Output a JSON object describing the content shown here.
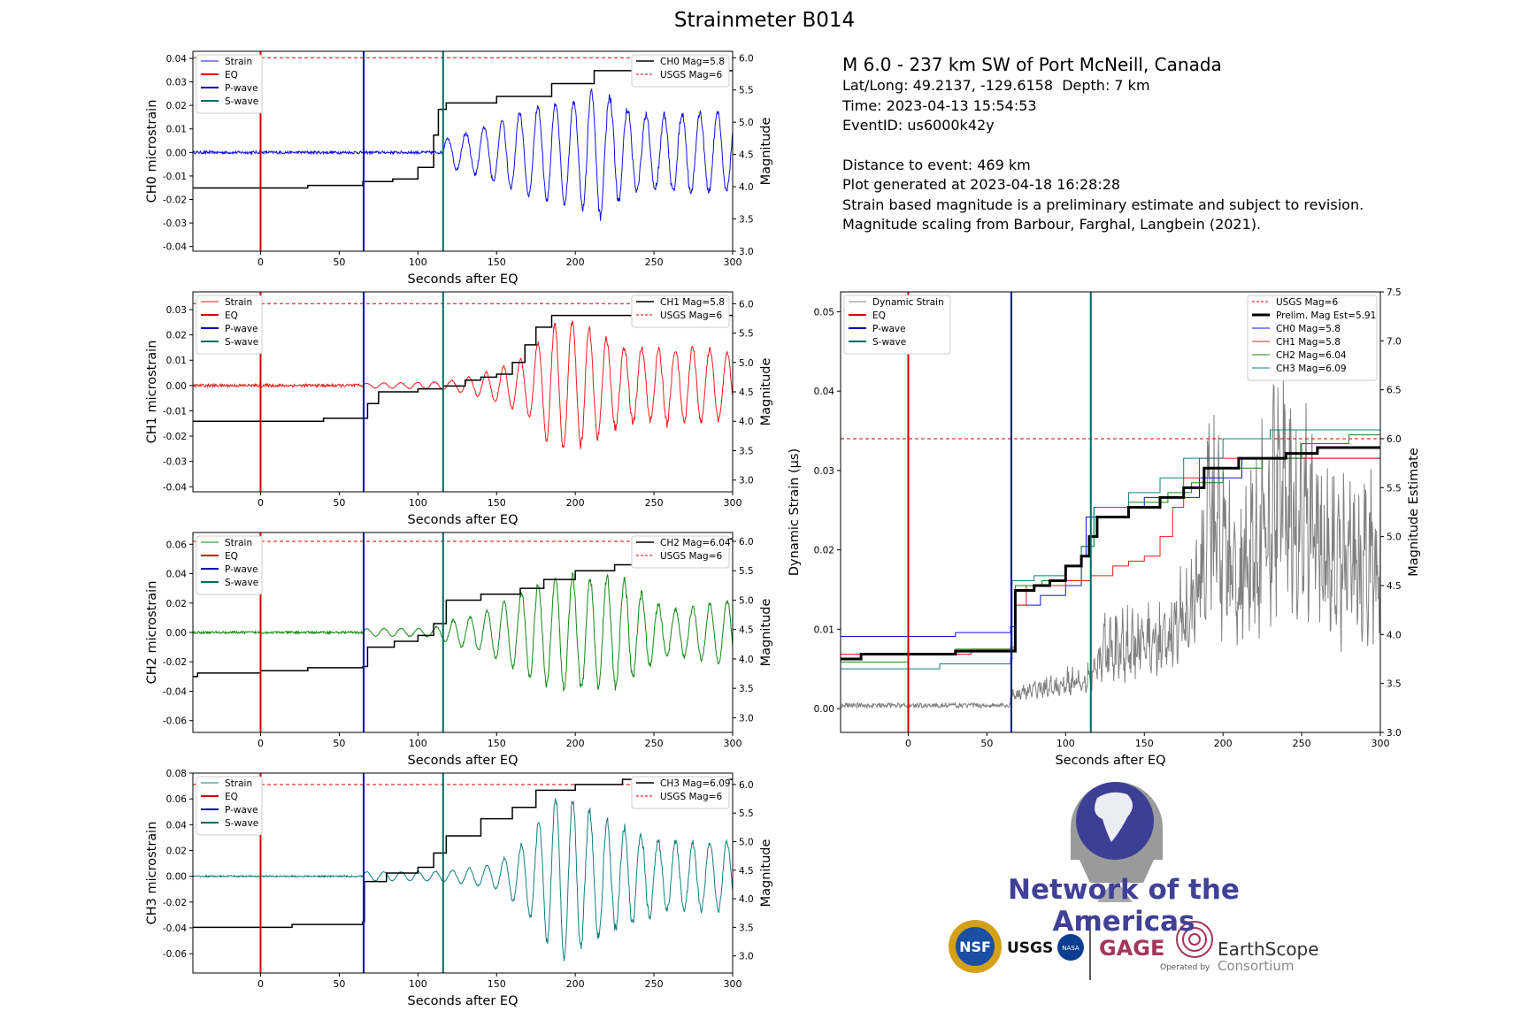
{
  "suptitle": "Strainmeter B014",
  "colors": {
    "ch0": "#1010e0",
    "ch1": "#ee1c1c",
    "ch2": "#118811",
    "ch3": "#117f7f",
    "eq": "#dd0000",
    "pwave": "#0000b0",
    "swave": "#006a60",
    "mag": "#000000",
    "usgs": "#dd0000",
    "dyn": "#808080"
  },
  "info": {
    "headline": "M 6.0 - 237 km SW of Port McNeill, Canada",
    "latlong": "Lat/Long: 49.2137, -129.6158  Depth: 7 km",
    "time": "Time: 2023-04-13 15:54:53",
    "eventid": "EventID: us6000k42y",
    "distance": "Distance to event: 469 km",
    "generated": "Plot generated at 2023-04-18 16:28:28",
    "note1": "Strain based magnitude is a preliminary estimate and subject to revision.",
    "note2": "Magnitude scaling from Barbour, Farghal, Langbein (2021)."
  },
  "logo": {
    "network": "Network of the Americas",
    "nsf": "NSF",
    "usgs": "USGS",
    "nasa": "NASA",
    "gage": "GAGE",
    "earthscope": "EarthScope",
    "consortium": "Consortium",
    "operated_by": "Operated by"
  },
  "chart_data": [
    {
      "type": "line",
      "id": "ch0",
      "ylabel": "CH0 microstrain",
      "xlabel": "Seconds after EQ",
      "y2label": "Magnitude",
      "xlim": [
        -43,
        300
      ],
      "ylim": [
        -0.042,
        0.043
      ],
      "y2lim": [
        3.0,
        6.1
      ],
      "xticks": [
        0,
        50,
        100,
        150,
        200,
        250,
        300
      ],
      "yticks": [
        -0.04,
        -0.03,
        -0.02,
        -0.01,
        0.0,
        0.01,
        0.02,
        0.03,
        0.04
      ],
      "y2ticks": [
        3.0,
        3.5,
        4.0,
        4.5,
        5.0,
        5.5,
        6.0
      ],
      "vlines": {
        "EQ": 0,
        "P-wave": 65.5,
        "S-wave": 116
      },
      "legend_left": [
        "Strain",
        "EQ",
        "P-wave",
        "S-wave"
      ],
      "legend_right": [
        "CH0 Mag=5.8",
        "USGS Mag=6"
      ],
      "usgs_mag": 6.0,
      "signal": {
        "onset": 116,
        "quiet": 0.0006,
        "amps": [
          [
            116,
            0.012
          ],
          [
            135,
            0.014
          ],
          [
            180,
            0.02
          ],
          [
            200,
            0.024
          ],
          [
            215,
            0.036
          ],
          [
            240,
            0.03
          ],
          [
            265,
            0.032
          ],
          [
            300,
            0.018
          ]
        ],
        "period": 11.5
      },
      "mag_steps": [
        [
          -43,
          3.98
        ],
        [
          30,
          4.02
        ],
        [
          65,
          4.08
        ],
        [
          84,
          4.12
        ],
        [
          100,
          4.3
        ],
        [
          110,
          4.8
        ],
        [
          113,
          5.2
        ],
        [
          118,
          5.3
        ],
        [
          150,
          5.4
        ],
        [
          185,
          5.6
        ],
        [
          212,
          5.8
        ],
        [
          300,
          5.8
        ]
      ]
    },
    {
      "type": "line",
      "id": "ch1",
      "ylabel": "CH1 microstrain",
      "xlabel": "Seconds after EQ",
      "y2label": "Magnitude",
      "xlim": [
        -43,
        300
      ],
      "ylim": [
        -0.042,
        0.037
      ],
      "y2lim": [
        2.8,
        6.2
      ],
      "xticks": [
        0,
        50,
        100,
        150,
        200,
        250,
        300
      ],
      "yticks": [
        -0.04,
        -0.03,
        -0.02,
        -0.01,
        0.0,
        0.01,
        0.02,
        0.03
      ],
      "y2ticks": [
        3.0,
        3.5,
        4.0,
        4.5,
        5.0,
        5.5,
        6.0
      ],
      "vlines": {
        "EQ": 0,
        "P-wave": 65.5,
        "S-wave": 116
      },
      "legend_left": [
        "Strain",
        "EQ",
        "P-wave",
        "S-wave"
      ],
      "legend_right": [
        "CH1 Mag=5.8",
        "USGS Mag=6"
      ],
      "usgs_mag": 6.0,
      "signal": {
        "onset": 65,
        "quiet": 0.0006,
        "amps": [
          [
            65,
            0.001
          ],
          [
            116,
            0.003
          ],
          [
            150,
            0.008
          ],
          [
            170,
            0.012
          ],
          [
            185,
            0.024
          ],
          [
            200,
            0.027
          ],
          [
            230,
            0.025
          ],
          [
            260,
            0.03
          ],
          [
            300,
            0.014
          ]
        ],
        "period": 11.0
      },
      "mag_steps": [
        [
          -43,
          4.0
        ],
        [
          40,
          4.05
        ],
        [
          65,
          4.05
        ],
        [
          68,
          4.3
        ],
        [
          75,
          4.5
        ],
        [
          100,
          4.55
        ],
        [
          116,
          4.6
        ],
        [
          130,
          4.7
        ],
        [
          140,
          4.75
        ],
        [
          150,
          4.8
        ],
        [
          160,
          5.0
        ],
        [
          168,
          5.3
        ],
        [
          175,
          5.6
        ],
        [
          185,
          5.8
        ],
        [
          300,
          5.8
        ]
      ]
    },
    {
      "type": "line",
      "id": "ch2",
      "ylabel": "CH2 microstrain",
      "xlabel": "Seconds after EQ",
      "y2label": "Magnitude",
      "xlim": [
        -43,
        300
      ],
      "ylim": [
        -0.068,
        0.068
      ],
      "y2lim": [
        2.75,
        6.15
      ],
      "xticks": [
        0,
        50,
        100,
        150,
        200,
        250,
        300
      ],
      "yticks": [
        -0.06,
        -0.04,
        -0.02,
        0.0,
        0.02,
        0.04,
        0.06
      ],
      "y2ticks": [
        3.0,
        3.5,
        4.0,
        4.5,
        5.0,
        5.5,
        6.0
      ],
      "vlines": {
        "EQ": 0,
        "P-wave": 65.5,
        "S-wave": 116
      },
      "legend_left": [
        "Strain",
        "EQ",
        "P-wave",
        "S-wave"
      ],
      "legend_right": [
        "CH2 Mag=6.04",
        "USGS Mag=6"
      ],
      "usgs_mag": 6.0,
      "signal": {
        "onset": 65,
        "quiet": 0.0008,
        "amps": [
          [
            65,
            0.003
          ],
          [
            110,
            0.006
          ],
          [
            120,
            0.015
          ],
          [
            140,
            0.018
          ],
          [
            180,
            0.035
          ],
          [
            210,
            0.045
          ],
          [
            232,
            0.06
          ],
          [
            260,
            0.03
          ],
          [
            300,
            0.026
          ]
        ],
        "period": 11.0
      },
      "mag_steps": [
        [
          -43,
          3.7
        ],
        [
          -40,
          3.76
        ],
        [
          0,
          3.8
        ],
        [
          30,
          3.85
        ],
        [
          65,
          3.87
        ],
        [
          68,
          4.2
        ],
        [
          85,
          4.3
        ],
        [
          100,
          4.4
        ],
        [
          110,
          4.6
        ],
        [
          118,
          5.0
        ],
        [
          140,
          5.1
        ],
        [
          165,
          5.2
        ],
        [
          180,
          5.35
        ],
        [
          200,
          5.5
        ],
        [
          225,
          5.6
        ],
        [
          250,
          5.8
        ],
        [
          280,
          6.04
        ],
        [
          300,
          6.04
        ]
      ]
    },
    {
      "type": "line",
      "id": "ch3",
      "ylabel": "CH3 microstrain",
      "xlabel": "Seconds after EQ",
      "y2label": "Magnitude",
      "xlim": [
        -43,
        300
      ],
      "ylim": [
        -0.075,
        0.08
      ],
      "y2lim": [
        2.7,
        6.2
      ],
      "xticks": [
        0,
        50,
        100,
        150,
        200,
        250,
        300
      ],
      "yticks": [
        -0.06,
        -0.04,
        -0.02,
        0.0,
        0.02,
        0.04,
        0.06,
        0.08
      ],
      "y2ticks": [
        3.0,
        3.5,
        4.0,
        4.5,
        5.0,
        5.5,
        6.0
      ],
      "vlines": {
        "EQ": 0,
        "P-wave": 65.5,
        "S-wave": 116
      },
      "legend_left": [
        "Strain",
        "EQ",
        "P-wave",
        "S-wave"
      ],
      "legend_right": [
        "CH3 Mag=6.09",
        "USGS Mag=6"
      ],
      "usgs_mag": 6.0,
      "signal": {
        "onset": 65,
        "quiet": 0.0006,
        "amps": [
          [
            65,
            0.004
          ],
          [
            116,
            0.008
          ],
          [
            150,
            0.012
          ],
          [
            170,
            0.03
          ],
          [
            190,
            0.065
          ],
          [
            220,
            0.06
          ],
          [
            240,
            0.065
          ],
          [
            270,
            0.045
          ],
          [
            300,
            0.03
          ]
        ],
        "period": 11.0
      },
      "mag_steps": [
        [
          -43,
          3.5
        ],
        [
          20,
          3.55
        ],
        [
          65,
          3.6
        ],
        [
          66,
          4.3
        ],
        [
          80,
          4.45
        ],
        [
          100,
          4.55
        ],
        [
          110,
          4.8
        ],
        [
          118,
          5.1
        ],
        [
          140,
          5.4
        ],
        [
          160,
          5.6
        ],
        [
          175,
          5.9
        ],
        [
          200,
          6.0
        ],
        [
          230,
          6.09
        ],
        [
          300,
          6.09
        ]
      ]
    },
    {
      "type": "line",
      "id": "combined",
      "ylabel": "Dynamic Strain (µs)",
      "xlabel": "Seconds after EQ",
      "y2label": "Magnitude Estimate",
      "xlim": [
        -43,
        300
      ],
      "ylim": [
        -0.003,
        0.0525
      ],
      "y2lim": [
        3.0,
        7.5
      ],
      "xticks": [
        0,
        50,
        100,
        150,
        200,
        250,
        300
      ],
      "yticks": [
        0.0,
        0.01,
        0.02,
        0.03,
        0.04,
        0.05
      ],
      "y2ticks": [
        3.0,
        3.5,
        4.0,
        4.5,
        5.0,
        5.5,
        6.0,
        6.5,
        7.0,
        7.5
      ],
      "vlines": {
        "EQ": 0,
        "P-wave": 65.5,
        "S-wave": 116
      },
      "legend_left": [
        "Dynamic Strain",
        "EQ",
        "P-wave",
        "S-wave"
      ],
      "legend_right": [
        "USGS Mag=6",
        "Prelim. Mag Est=5.91",
        "CH0 Mag=5.8",
        "CH1 Mag=5.8",
        "CH2 Mag=6.04",
        "CH3 Mag=6.09"
      ],
      "usgs_mag": 6.0,
      "dynamic": {
        "onset": 65,
        "quiet": 0.0003,
        "amps": [
          [
            65,
            0.002
          ],
          [
            116,
            0.006
          ],
          [
            125,
            0.012
          ],
          [
            160,
            0.014
          ],
          [
            180,
            0.02
          ],
          [
            190,
            0.04
          ],
          [
            210,
            0.025
          ],
          [
            235,
            0.045
          ],
          [
            270,
            0.032
          ],
          [
            300,
            0.03
          ]
        ]
      },
      "mag_series": [
        {
          "name": "Prelim. Mag Est=5.91",
          "final": 5.91,
          "steps": [
            [
              -43,
              3.75
            ],
            [
              -30,
              3.8
            ],
            [
              30,
              3.83
            ],
            [
              65,
              3.83
            ],
            [
              68,
              4.45
            ],
            [
              80,
              4.5
            ],
            [
              90,
              4.55
            ],
            [
              100,
              4.7
            ],
            [
              110,
              4.8
            ],
            [
              115,
              5.0
            ],
            [
              120,
              5.2
            ],
            [
              140,
              5.3
            ],
            [
              160,
              5.4
            ],
            [
              175,
              5.5
            ],
            [
              188,
              5.7
            ],
            [
              210,
              5.8
            ],
            [
              240,
              5.85
            ],
            [
              260,
              5.91
            ],
            [
              300,
              5.91
            ]
          ]
        },
        {
          "name": "CH0 Mag=5.8",
          "final": 5.8,
          "steps": [
            [
              -43,
              3.98
            ],
            [
              30,
              4.02
            ],
            [
              65,
              4.08
            ],
            [
              68,
              4.3
            ],
            [
              84,
              4.4
            ],
            [
              100,
              4.5
            ],
            [
              110,
              4.8
            ],
            [
              113,
              5.2
            ],
            [
              118,
              5.3
            ],
            [
              150,
              5.4
            ],
            [
              185,
              5.6
            ],
            [
              212,
              5.8
            ],
            [
              300,
              5.8
            ]
          ]
        },
        {
          "name": "CH1 Mag=5.8",
          "final": 5.8,
          "steps": [
            [
              -43,
              3.8
            ],
            [
              40,
              3.85
            ],
            [
              65,
              3.85
            ],
            [
              68,
              4.3
            ],
            [
              75,
              4.5
            ],
            [
              100,
              4.55
            ],
            [
              116,
              4.6
            ],
            [
              130,
              4.7
            ],
            [
              140,
              4.75
            ],
            [
              150,
              4.8
            ],
            [
              160,
              5.0
            ],
            [
              168,
              5.3
            ],
            [
              175,
              5.6
            ],
            [
              185,
              5.8
            ],
            [
              300,
              5.8
            ]
          ]
        },
        {
          "name": "CH2 Mag=6.04",
          "final": 6.04,
          "steps": [
            [
              -43,
              3.72
            ],
            [
              0,
              3.8
            ],
            [
              30,
              3.85
            ],
            [
              65,
              3.87
            ],
            [
              68,
              4.5
            ],
            [
              85,
              4.55
            ],
            [
              100,
              4.7
            ],
            [
              110,
              4.9
            ],
            [
              118,
              5.2
            ],
            [
              140,
              5.35
            ],
            [
              165,
              5.45
            ],
            [
              180,
              5.55
            ],
            [
              200,
              5.7
            ],
            [
              225,
              5.8
            ],
            [
              250,
              5.95
            ],
            [
              280,
              6.04
            ],
            [
              300,
              6.04
            ]
          ]
        },
        {
          "name": "CH3 Mag=6.09",
          "final": 6.09,
          "steps": [
            [
              -43,
              3.65
            ],
            [
              20,
              3.7
            ],
            [
              65,
              3.75
            ],
            [
              66,
              4.55
            ],
            [
              80,
              4.6
            ],
            [
              100,
              4.7
            ],
            [
              110,
              4.9
            ],
            [
              118,
              5.3
            ],
            [
              140,
              5.45
            ],
            [
              160,
              5.6
            ],
            [
              175,
              5.8
            ],
            [
              200,
              6.0
            ],
            [
              230,
              6.09
            ],
            [
              300,
              6.09
            ]
          ]
        }
      ]
    }
  ]
}
